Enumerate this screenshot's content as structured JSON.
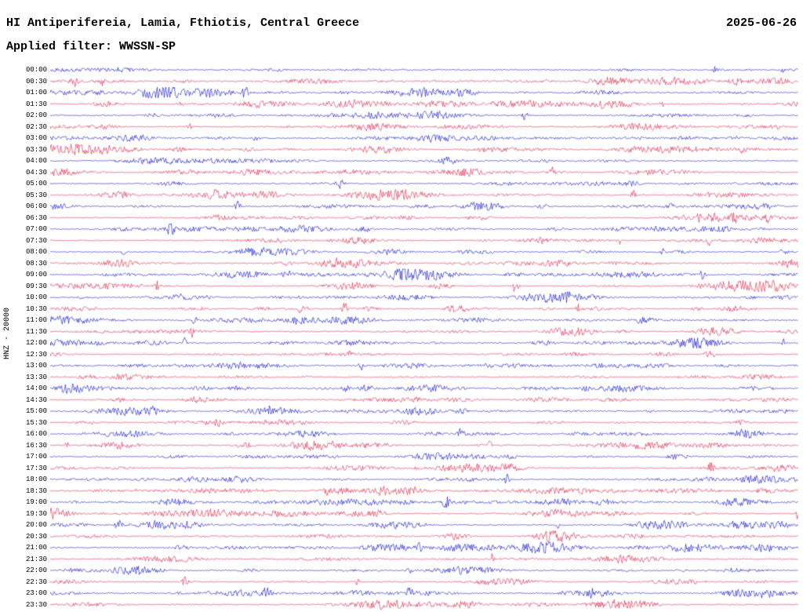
{
  "header": {
    "station_title": "HI Antiperifereia, Lamia, Fthiotis, Central Greece",
    "date": "2025-06-26",
    "filter_label": "Applied filter: WWSSN-SP"
  },
  "axis": {
    "channel_label": "HNZ - 20000"
  },
  "chart_data": {
    "type": "line",
    "subtype": "helicorder-seismogram",
    "title": "HI Antiperifereia, Lamia, Fthiotis, Central Greece",
    "date": "2025-06-26",
    "filter": "WWSSN-SP",
    "channel_label": "HNZ - 20000",
    "minutes_per_row": 30,
    "row_start_time": "00:00",
    "row_end_time": "23:30",
    "grid": false,
    "legend": "none",
    "background_color": "#ffffff",
    "trace_colors": {
      "even_rows": "#0000cc",
      "odd_rows": "#dc143c"
    },
    "rows": [
      {
        "time": "00:00",
        "color": "#0000cc"
      },
      {
        "time": "00:30",
        "color": "#dc143c"
      },
      {
        "time": "01:00",
        "color": "#0000cc"
      },
      {
        "time": "01:30",
        "color": "#dc143c"
      },
      {
        "time": "02:00",
        "color": "#0000cc"
      },
      {
        "time": "02:30",
        "color": "#dc143c"
      },
      {
        "time": "03:00",
        "color": "#0000cc"
      },
      {
        "time": "03:30",
        "color": "#dc143c"
      },
      {
        "time": "04:00",
        "color": "#0000cc"
      },
      {
        "time": "04:30",
        "color": "#dc143c"
      },
      {
        "time": "05:00",
        "color": "#0000cc"
      },
      {
        "time": "05:30",
        "color": "#dc143c"
      },
      {
        "time": "06:00",
        "color": "#0000cc"
      },
      {
        "time": "06:30",
        "color": "#dc143c"
      },
      {
        "time": "07:00",
        "color": "#0000cc"
      },
      {
        "time": "07:30",
        "color": "#dc143c"
      },
      {
        "time": "08:00",
        "color": "#0000cc"
      },
      {
        "time": "08:30",
        "color": "#dc143c"
      },
      {
        "time": "09:00",
        "color": "#0000cc"
      },
      {
        "time": "09:30",
        "color": "#dc143c"
      },
      {
        "time": "10:00",
        "color": "#0000cc"
      },
      {
        "time": "10:30",
        "color": "#dc143c"
      },
      {
        "time": "11:00",
        "color": "#0000cc"
      },
      {
        "time": "11:30",
        "color": "#dc143c"
      },
      {
        "time": "12:00",
        "color": "#0000cc"
      },
      {
        "time": "12:30",
        "color": "#dc143c"
      },
      {
        "time": "13:00",
        "color": "#0000cc"
      },
      {
        "time": "13:30",
        "color": "#dc143c"
      },
      {
        "time": "14:00",
        "color": "#0000cc"
      },
      {
        "time": "14:30",
        "color": "#dc143c"
      },
      {
        "time": "15:00",
        "color": "#0000cc"
      },
      {
        "time": "15:30",
        "color": "#dc143c"
      },
      {
        "time": "16:00",
        "color": "#0000cc"
      },
      {
        "time": "16:30",
        "color": "#dc143c"
      },
      {
        "time": "17:00",
        "color": "#0000cc"
      },
      {
        "time": "17:30",
        "color": "#dc143c"
      },
      {
        "time": "18:00",
        "color": "#0000cc"
      },
      {
        "time": "18:30",
        "color": "#dc143c"
      },
      {
        "time": "19:00",
        "color": "#0000cc"
      },
      {
        "time": "19:30",
        "color": "#dc143c"
      },
      {
        "time": "20:00",
        "color": "#0000cc"
      },
      {
        "time": "20:30",
        "color": "#dc143c"
      },
      {
        "time": "21:00",
        "color": "#0000cc"
      },
      {
        "time": "21:30",
        "color": "#dc143c"
      },
      {
        "time": "22:00",
        "color": "#0000cc"
      },
      {
        "time": "22:30",
        "color": "#dc143c"
      },
      {
        "time": "23:00",
        "color": "#0000cc"
      },
      {
        "time": "23:30",
        "color": "#dc143c"
      }
    ]
  }
}
